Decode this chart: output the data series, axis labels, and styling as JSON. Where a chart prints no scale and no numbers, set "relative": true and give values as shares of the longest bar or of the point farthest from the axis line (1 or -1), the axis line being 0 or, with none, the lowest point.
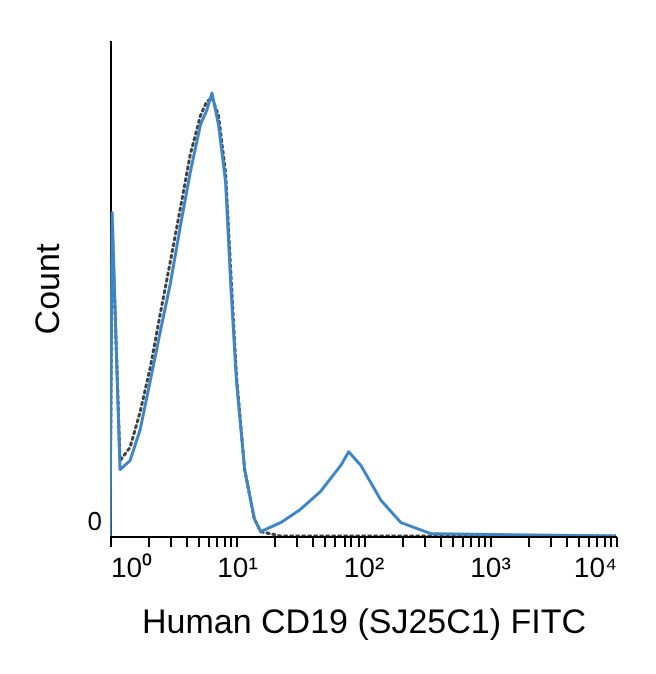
{
  "chart_data": {
    "type": "line",
    "relative": true,
    "xlabel": "Human CD19 (SJ25C1) FITC",
    "ylabel": "Count",
    "log": "x",
    "marker": "none",
    "xlim": [
      1,
      10000
    ],
    "xticks": [
      {
        "value": 1,
        "label": "10⁰"
      },
      {
        "value": 2,
        "label": null
      },
      {
        "value": 3,
        "label": null
      },
      {
        "value": 4,
        "label": null
      },
      {
        "value": 5,
        "label": null
      },
      {
        "value": 6,
        "label": null
      },
      {
        "value": 7,
        "label": null
      },
      {
        "value": 8,
        "label": null
      },
      {
        "value": 9,
        "label": null
      },
      {
        "value": 10,
        "label": "10¹"
      },
      {
        "value": 20,
        "label": null
      },
      {
        "value": 30,
        "label": null
      },
      {
        "value": 40,
        "label": null
      },
      {
        "value": 50,
        "label": null
      },
      {
        "value": 60,
        "label": null
      },
      {
        "value": 70,
        "label": null
      },
      {
        "value": 80,
        "label": null
      },
      {
        "value": 90,
        "label": null
      },
      {
        "value": 100,
        "label": "10²"
      },
      {
        "value": 200,
        "label": null
      },
      {
        "value": 300,
        "label": null
      },
      {
        "value": 400,
        "label": null
      },
      {
        "value": 500,
        "label": null
      },
      {
        "value": 600,
        "label": null
      },
      {
        "value": 700,
        "label": null
      },
      {
        "value": 800,
        "label": null
      },
      {
        "value": 900,
        "label": null
      },
      {
        "value": 1000,
        "label": "10³"
      },
      {
        "value": 2000,
        "label": null
      },
      {
        "value": 3000,
        "label": null
      },
      {
        "value": 4000,
        "label": null
      },
      {
        "value": 5000,
        "label": null
      },
      {
        "value": 6000,
        "label": null
      },
      {
        "value": 7000,
        "label": null
      },
      {
        "value": 8000,
        "label": null
      },
      {
        "value": 9000,
        "label": null
      },
      {
        "value": 10000,
        "label": "10⁴"
      }
    ],
    "annotations": [
      "0"
    ],
    "series": [
      {
        "color": "#404040",
        "line_style": "dotted",
        "x": [
          1,
          1.04,
          1.2,
          1.44,
          1.73,
          2.08,
          2.49,
          3.0,
          3.6,
          4.3,
          5.2,
          5.8,
          6.4,
          7.2,
          8.2,
          9.0,
          10,
          11.6,
          13.8,
          15.5,
          22.3,
          10000
        ],
        "values": [
          0,
          0.7,
          0.17,
          0.2,
          0.28,
          0.38,
          0.5,
          0.62,
          0.74,
          0.86,
          0.95,
          0.98,
          0.99,
          0.95,
          0.82,
          0.6,
          0.36,
          0.15,
          0.04,
          0.01,
          0,
          0
        ]
      },
      {
        "color": "#3d85c6",
        "line_style": "solid",
        "x": [
          1,
          1.04,
          1.2,
          1.44,
          1.73,
          2.08,
          2.49,
          3.0,
          3.6,
          4.3,
          5.2,
          5.8,
          6.4,
          7.2,
          8.2,
          9.0,
          10,
          11.6,
          13.8,
          15.5,
          22.3,
          32,
          46,
          67,
          77,
          96,
          139,
          200,
          347,
          10000
        ],
        "values": [
          0,
          0.73,
          0.15,
          0.17,
          0.24,
          0.35,
          0.46,
          0.57,
          0.7,
          0.82,
          0.93,
          0.96,
          1,
          0.93,
          0.8,
          0.57,
          0.35,
          0.15,
          0.04,
          0.01,
          0.03,
          0.06,
          0.1,
          0.16,
          0.19,
          0.16,
          0.08,
          0.03,
          0.005,
          0
        ]
      }
    ]
  }
}
